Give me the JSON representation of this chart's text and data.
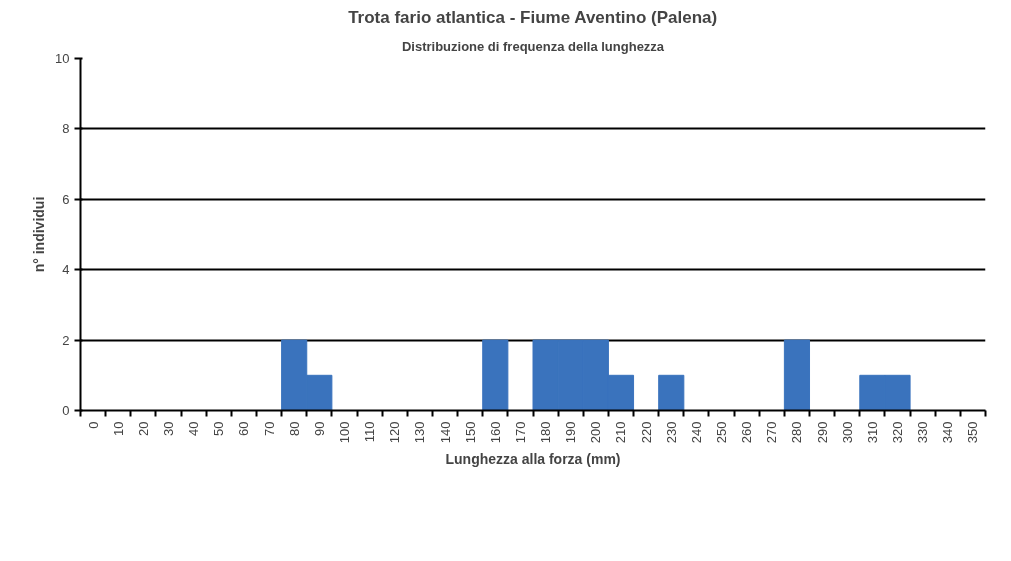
{
  "chart_data": {
    "type": "bar",
    "title": "Trota fario atlantica - Fiume Aventino (Palena)",
    "subtitle": "Distribuzione di frequenza della lunghezza",
    "xlabel": "Lunghezza alla forza (mm)",
    "ylabel": "n° individui",
    "categories": [
      "0",
      "10",
      "20",
      "30",
      "40",
      "50",
      "60",
      "70",
      "80",
      "90",
      "100",
      "110",
      "120",
      "130",
      "140",
      "150",
      "160",
      "170",
      "180",
      "190",
      "200",
      "210",
      "220",
      "230",
      "240",
      "250",
      "260",
      "270",
      "280",
      "290",
      "300",
      "310",
      "320",
      "330",
      "340",
      "350"
    ],
    "values": [
      0,
      0,
      0,
      0,
      0,
      0,
      0,
      0,
      2,
      1,
      0,
      0,
      0,
      0,
      0,
      0,
      2,
      0,
      2,
      2,
      2,
      1,
      0,
      1,
      0,
      0,
      0,
      0,
      2,
      0,
      0,
      1,
      1,
      0,
      0,
      0
    ],
    "color": "#3a73bd",
    "ylim": [
      0,
      10
    ],
    "yticks": [
      0,
      2,
      4,
      6,
      8,
      10
    ],
    "grid": "y"
  }
}
